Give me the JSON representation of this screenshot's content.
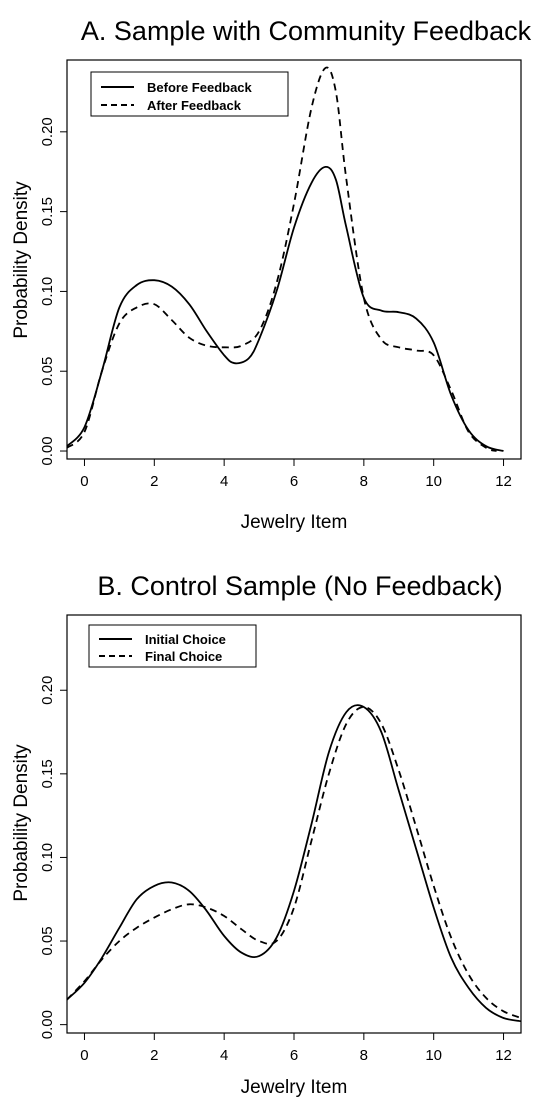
{
  "chart_data": [
    {
      "type": "line",
      "title": "A. Sample with Community Feedback",
      "xlabel": "Jewelry Item",
      "ylabel": "Probability Density",
      "xlim": [
        -0.5,
        12.5
      ],
      "ylim": [
        -0.005,
        0.245
      ],
      "xticks": [
        0,
        2,
        4,
        6,
        8,
        10,
        12
      ],
      "yticks": [
        0.0,
        0.05,
        0.1,
        0.15,
        0.2
      ],
      "ytick_labels": [
        "0.00",
        "0.05",
        "0.10",
        "0.15",
        "0.20"
      ],
      "grid": false,
      "legend": "top-left",
      "series": [
        {
          "name": "Before Feedback",
          "style": "solid",
          "x": [
            -0.5,
            0,
            0.5,
            1,
            1.5,
            2,
            2.5,
            3,
            3.5,
            4,
            4.3,
            4.7,
            5,
            5.5,
            6,
            6.5,
            6.9,
            7.2,
            7.5,
            8,
            8.5,
            9,
            9.5,
            10,
            10.5,
            11,
            11.5,
            12
          ],
          "y": [
            0.003,
            0.015,
            0.05,
            0.09,
            0.104,
            0.107,
            0.103,
            0.092,
            0.075,
            0.06,
            0.055,
            0.058,
            0.07,
            0.1,
            0.14,
            0.168,
            0.178,
            0.17,
            0.14,
            0.096,
            0.088,
            0.087,
            0.083,
            0.068,
            0.035,
            0.013,
            0.003,
            0
          ]
        },
        {
          "name": "After Feedback",
          "style": "dashed",
          "x": [
            -0.5,
            0,
            0.5,
            1,
            1.5,
            2,
            2.5,
            3,
            3.5,
            4,
            4.5,
            5,
            5.5,
            6,
            6.5,
            6.9,
            7.2,
            7.5,
            8,
            8.5,
            9,
            9.5,
            10,
            10.5,
            11,
            11.5,
            11.8
          ],
          "y": [
            0.002,
            0.012,
            0.05,
            0.08,
            0.09,
            0.092,
            0.082,
            0.071,
            0.066,
            0.065,
            0.066,
            0.075,
            0.105,
            0.155,
            0.215,
            0.24,
            0.225,
            0.17,
            0.096,
            0.07,
            0.065,
            0.063,
            0.06,
            0.038,
            0.012,
            0.002,
            0
          ]
        }
      ]
    },
    {
      "type": "line",
      "title": "B. Control Sample (No Feedback)",
      "xlabel": "Jewelry Item",
      "ylabel": "Probability Density",
      "xlim": [
        -0.5,
        12.5
      ],
      "ylim": [
        -0.005,
        0.245
      ],
      "xticks": [
        0,
        2,
        4,
        6,
        8,
        10,
        12
      ],
      "yticks": [
        0.0,
        0.05,
        0.1,
        0.15,
        0.2
      ],
      "ytick_labels": [
        "0.00",
        "0.05",
        "0.10",
        "0.15",
        "0.20"
      ],
      "grid": false,
      "legend": "top-left",
      "series": [
        {
          "name": "Initial Choice",
          "style": "solid",
          "x": [
            -0.5,
            0,
            0.5,
            1,
            1.5,
            2,
            2.5,
            3,
            3.5,
            4,
            4.5,
            5,
            5.5,
            6,
            6.5,
            7,
            7.5,
            8,
            8.5,
            9,
            9.5,
            10,
            10.5,
            11,
            11.5,
            12,
            12.5
          ],
          "y": [
            0.015,
            0.025,
            0.04,
            0.058,
            0.075,
            0.083,
            0.085,
            0.08,
            0.068,
            0.053,
            0.043,
            0.041,
            0.052,
            0.08,
            0.12,
            0.163,
            0.187,
            0.19,
            0.175,
            0.14,
            0.105,
            0.07,
            0.04,
            0.022,
            0.01,
            0.004,
            0.002
          ]
        },
        {
          "name": "Final Choice",
          "style": "dashed",
          "x": [
            -0.5,
            0,
            0.5,
            1,
            1.5,
            2,
            2.5,
            3,
            3.5,
            4,
            4.5,
            5,
            5.5,
            6,
            6.5,
            7,
            7.5,
            8,
            8.5,
            9,
            9.5,
            10,
            10.5,
            11,
            11.5,
            12,
            12.5
          ],
          "y": [
            0.015,
            0.026,
            0.039,
            0.05,
            0.058,
            0.064,
            0.069,
            0.072,
            0.07,
            0.065,
            0.057,
            0.05,
            0.05,
            0.07,
            0.11,
            0.15,
            0.18,
            0.19,
            0.18,
            0.152,
            0.118,
            0.083,
            0.052,
            0.03,
            0.016,
            0.008,
            0.004
          ]
        }
      ]
    }
  ]
}
